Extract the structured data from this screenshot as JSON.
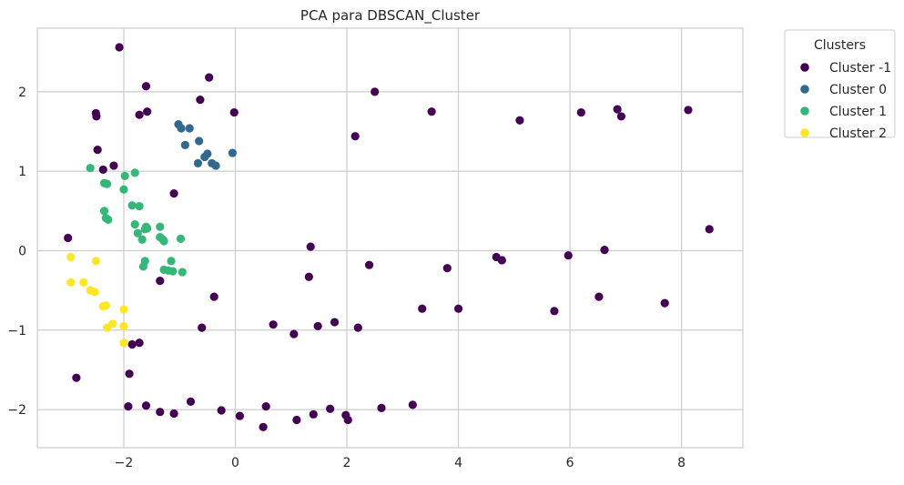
{
  "chart_data": {
    "type": "scatter",
    "title": "PCA para DBSCAN_Cluster",
    "xlabel": "",
    "ylabel": "",
    "xlim": [
      -3.55,
      9.1
    ],
    "ylim": [
      -2.48,
      2.8
    ],
    "xticks": [
      -2,
      0,
      2,
      4,
      6,
      8
    ],
    "yticks": [
      -2,
      -1,
      0,
      1,
      2
    ],
    "grid": true,
    "legend": {
      "title": "Clusters",
      "placement": "outside-top-right"
    },
    "series": [
      {
        "name": "Cluster -1",
        "color": "#440154",
        "points": [
          [
            -2.08,
            2.56
          ],
          [
            -1.6,
            2.07
          ],
          [
            -0.47,
            2.18
          ],
          [
            -0.63,
            1.9
          ],
          [
            -1.72,
            1.71
          ],
          [
            -1.58,
            1.75
          ],
          [
            -0.02,
            1.74
          ],
          [
            -2.47,
            1.27
          ],
          [
            -2.18,
            1.07
          ],
          [
            -2.37,
            1.02
          ],
          [
            -1.1,
            0.72
          ],
          [
            -3.0,
            0.16
          ],
          [
            -1.35,
            -0.38
          ],
          [
            -0.38,
            -0.58
          ],
          [
            -0.6,
            -0.97
          ],
          [
            -1.85,
            -1.18
          ],
          [
            -1.72,
            -1.16
          ],
          [
            -1.9,
            -1.55
          ],
          [
            -2.85,
            -1.6
          ],
          [
            -1.92,
            -1.96
          ],
          [
            -1.6,
            -1.95
          ],
          [
            -1.35,
            -2.03
          ],
          [
            -1.1,
            -2.05
          ],
          [
            -0.8,
            -1.9
          ],
          [
            -0.25,
            -2.01
          ],
          [
            0.08,
            -2.08
          ],
          [
            0.5,
            -2.22
          ],
          [
            0.55,
            -1.96
          ],
          [
            1.1,
            -2.13
          ],
          [
            1.4,
            -2.06
          ],
          [
            1.7,
            -1.99
          ],
          [
            1.98,
            -2.07
          ],
          [
            2.02,
            -2.13
          ],
          [
            2.62,
            -1.98
          ],
          [
            3.18,
            -1.94
          ],
          [
            0.68,
            -0.93
          ],
          [
            1.05,
            -1.05
          ],
          [
            1.48,
            -0.95
          ],
          [
            1.78,
            -0.9
          ],
          [
            2.2,
            -0.97
          ],
          [
            1.35,
            0.05
          ],
          [
            1.32,
            -0.33
          ],
          [
            2.4,
            -0.18
          ],
          [
            3.35,
            -0.73
          ],
          [
            3.8,
            -0.22
          ],
          [
            4.0,
            -0.73
          ],
          [
            4.68,
            -0.08
          ],
          [
            4.78,
            -0.12
          ],
          [
            5.72,
            -0.76
          ],
          [
            5.97,
            -0.06
          ],
          [
            6.52,
            -0.58
          ],
          [
            6.62,
            0.01
          ],
          [
            7.7,
            -0.66
          ],
          [
            8.5,
            0.27
          ],
          [
            2.15,
            1.44
          ],
          [
            2.5,
            2.0
          ],
          [
            3.52,
            1.75
          ],
          [
            5.1,
            1.64
          ],
          [
            6.2,
            1.74
          ],
          [
            6.85,
            1.78
          ],
          [
            6.92,
            1.69
          ],
          [
            8.12,
            1.77
          ],
          [
            -2.5,
            1.73
          ],
          [
            -2.49,
            1.69
          ]
        ]
      },
      {
        "name": "Cluster 0",
        "color": "#31688e",
        "points": [
          [
            -1.02,
            1.59
          ],
          [
            -0.97,
            1.54
          ],
          [
            -0.82,
            1.54
          ],
          [
            -0.9,
            1.33
          ],
          [
            -0.65,
            1.38
          ],
          [
            -0.55,
            1.18
          ],
          [
            -0.5,
            1.22
          ],
          [
            -0.67,
            1.1
          ],
          [
            -0.42,
            1.1
          ],
          [
            -0.35,
            1.07
          ],
          [
            -0.05,
            1.23
          ]
        ]
      },
      {
        "name": "Cluster 1",
        "color": "#35b779",
        "points": [
          [
            -2.6,
            1.04
          ],
          [
            -2.35,
            0.85
          ],
          [
            -2.3,
            0.84
          ],
          [
            -1.98,
            0.94
          ],
          [
            -1.8,
            0.98
          ],
          [
            -2.0,
            0.77
          ],
          [
            -2.35,
            0.5
          ],
          [
            -2.32,
            0.41
          ],
          [
            -2.28,
            0.39
          ],
          [
            -1.85,
            0.57
          ],
          [
            -1.72,
            0.56
          ],
          [
            -1.8,
            0.33
          ],
          [
            -1.6,
            0.3
          ],
          [
            -1.62,
            0.27
          ],
          [
            -1.58,
            0.28
          ],
          [
            -1.75,
            0.22
          ],
          [
            -1.67,
            0.14
          ],
          [
            -1.35,
            0.3
          ],
          [
            -1.35,
            0.17
          ],
          [
            -1.3,
            0.14
          ],
          [
            -1.28,
            0.12
          ],
          [
            -0.98,
            0.15
          ],
          [
            -1.62,
            -0.13
          ],
          [
            -1.65,
            -0.2
          ],
          [
            -1.15,
            -0.13
          ],
          [
            -1.28,
            -0.24
          ],
          [
            -1.2,
            -0.25
          ],
          [
            -1.12,
            -0.26
          ],
          [
            -0.95,
            -0.27
          ]
        ]
      },
      {
        "name": "Cluster 2",
        "color": "#fde725",
        "points": [
          [
            -2.95,
            -0.08
          ],
          [
            -2.95,
            -0.4
          ],
          [
            -2.72,
            -0.4
          ],
          [
            -2.6,
            -0.5
          ],
          [
            -2.52,
            -0.52
          ],
          [
            -2.5,
            -0.13
          ],
          [
            -2.37,
            -0.7
          ],
          [
            -2.32,
            -0.69
          ],
          [
            -2.3,
            -0.97
          ],
          [
            -2.2,
            -0.92
          ],
          [
            -2.0,
            -0.74
          ],
          [
            -2.0,
            -0.95
          ],
          [
            -2.0,
            -1.16
          ]
        ]
      }
    ]
  }
}
